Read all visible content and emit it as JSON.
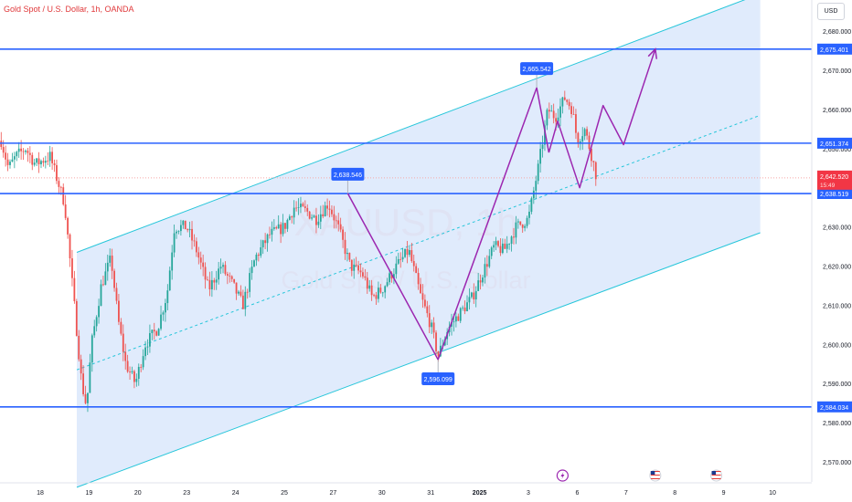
{
  "header": {
    "title": "Gold Spot / U.S. Dollar, 1h, OANDA",
    "currency_button": "USD"
  },
  "watermark": {
    "symbol": "XAUUSD, 1h",
    "description": "Gold Spot / U.S. Dollar"
  },
  "colors": {
    "up": "#26a69a",
    "down": "#ef5350",
    "level_line": "#2962ff",
    "channel": "#26c6da",
    "channel_fill": "#dbe8fb",
    "projection": "#9c27b0",
    "label_bg": "#2962ff",
    "price_label_bg": "#f23645",
    "axis_text": "#131722"
  },
  "chart_data": {
    "type": "candlestick",
    "symbol": "XAUUSD",
    "timeframe": "1h",
    "source": "OANDA",
    "ylim": [
      2563,
      2690
    ],
    "y_ticks": [
      2570,
      2580,
      2590,
      2600,
      2610,
      2620,
      2630,
      2640,
      2650,
      2660,
      2670,
      2680
    ],
    "y_tick_labels": [
      "2,570.000",
      "2,580.000",
      "2,590.000",
      "2,600.000",
      "2,610.000",
      "2,620.000",
      "2,630.000",
      "2,640.000",
      "2,650.000",
      "2,660.000",
      "2,670.000",
      "2,680.000"
    ],
    "x_labels": [
      "18",
      "19",
      "20",
      "23",
      "24",
      "25",
      "27",
      "30",
      "31",
      "2025",
      "3",
      "6",
      "7",
      "8",
      "9",
      "10"
    ],
    "x_label_days": [
      0,
      1,
      2,
      3,
      4,
      5,
      6,
      7,
      8,
      9,
      10,
      11,
      12,
      13,
      14,
      15
    ],
    "price_path": [
      [
        -0.8,
        2652
      ],
      [
        -0.65,
        2645
      ],
      [
        -0.5,
        2648
      ],
      [
        -0.3,
        2650
      ],
      [
        -0.1,
        2646
      ],
      [
        0.2,
        2648
      ],
      [
        0.5,
        2636
      ],
      [
        0.85,
        2590
      ],
      [
        0.95,
        2584
      ],
      [
        1.05,
        2600
      ],
      [
        1.25,
        2615
      ],
      [
        1.45,
        2622
      ],
      [
        1.6,
        2606
      ],
      [
        1.75,
        2595
      ],
      [
        1.95,
        2590
      ],
      [
        2.15,
        2600
      ],
      [
        2.4,
        2604
      ],
      [
        2.6,
        2613
      ],
      [
        2.75,
        2630
      ],
      [
        3.0,
        2630
      ],
      [
        3.2,
        2624
      ],
      [
        3.45,
        2614
      ],
      [
        3.7,
        2620
      ],
      [
        3.95,
        2615
      ],
      [
        4.15,
        2610
      ],
      [
        4.4,
        2622
      ],
      [
        4.7,
        2628
      ],
      [
        5.0,
        2630
      ],
      [
        5.2,
        2635
      ],
      [
        5.45,
        2634
      ],
      [
        5.65,
        2632
      ],
      [
        5.9,
        2636
      ],
      [
        6.1,
        2630
      ],
      [
        6.35,
        2620
      ],
      [
        6.6,
        2618
      ],
      [
        6.8,
        2612
      ],
      [
        7.0,
        2614
      ],
      [
        7.3,
        2620
      ],
      [
        7.55,
        2624
      ],
      [
        7.8,
        2612
      ],
      [
        8.0,
        2605
      ],
      [
        8.15,
        2597
      ],
      [
        8.35,
        2604
      ],
      [
        8.6,
        2608
      ],
      [
        8.85,
        2612
      ],
      [
        9.05,
        2618
      ],
      [
        9.3,
        2625
      ],
      [
        9.5,
        2624
      ],
      [
        9.75,
        2630
      ],
      [
        10.0,
        2632
      ],
      [
        10.2,
        2645
      ],
      [
        10.4,
        2660
      ],
      [
        10.55,
        2658
      ],
      [
        10.75,
        2663
      ],
      [
        10.9,
        2660
      ],
      [
        11.0,
        2652
      ],
      [
        11.15,
        2655
      ],
      [
        11.3,
        2648
      ],
      [
        11.4,
        2642.52
      ]
    ],
    "channel": {
      "upper": [
        [
          0.75,
          2623.5
        ],
        [
          14.75,
          2689.5
        ]
      ],
      "lower": [
        [
          0.75,
          2563.5
        ],
        [
          14.75,
          2628.5
        ]
      ],
      "mid": [
        [
          0.75,
          2593.5
        ],
        [
          14.75,
          2658.5
        ]
      ]
    },
    "horizontal_levels": [
      2675.401,
      2651.374,
      2638.519,
      2584.034
    ],
    "zigzag_drawing": [
      [
        6.3,
        2638.546
      ],
      [
        8.15,
        2596.099
      ],
      [
        10.17,
        2665.542
      ],
      [
        10.42,
        2649
      ]
    ],
    "projection_path": [
      [
        10.42,
        2649
      ],
      [
        10.6,
        2657
      ],
      [
        11.05,
        2640
      ],
      [
        11.53,
        2661
      ],
      [
        11.95,
        2651
      ],
      [
        12.6,
        2675.401
      ]
    ],
    "annotations": [
      {
        "text": "2,638.546",
        "x": 6.3,
        "y": 2638.546,
        "position": "above"
      },
      {
        "text": "2,596.099",
        "x": 8.15,
        "y": 2596.099,
        "position": "below"
      },
      {
        "text": "2,665.542",
        "x": 10.17,
        "y": 2665.542,
        "position": "above"
      }
    ],
    "level_labels": [
      "2,675.401",
      "2,651.374",
      "2,638.519",
      "2,584.034"
    ],
    "current_price": {
      "value": 2642.52,
      "label": "2,642.520",
      "countdown": "15:49"
    },
    "event_markers": [
      {
        "x": 10.7,
        "icon": "lightning-icon"
      },
      {
        "x": 12.6,
        "icon": "us-flag-icon"
      },
      {
        "x": 13.85,
        "icon": "us-flag-icon"
      }
    ]
  }
}
